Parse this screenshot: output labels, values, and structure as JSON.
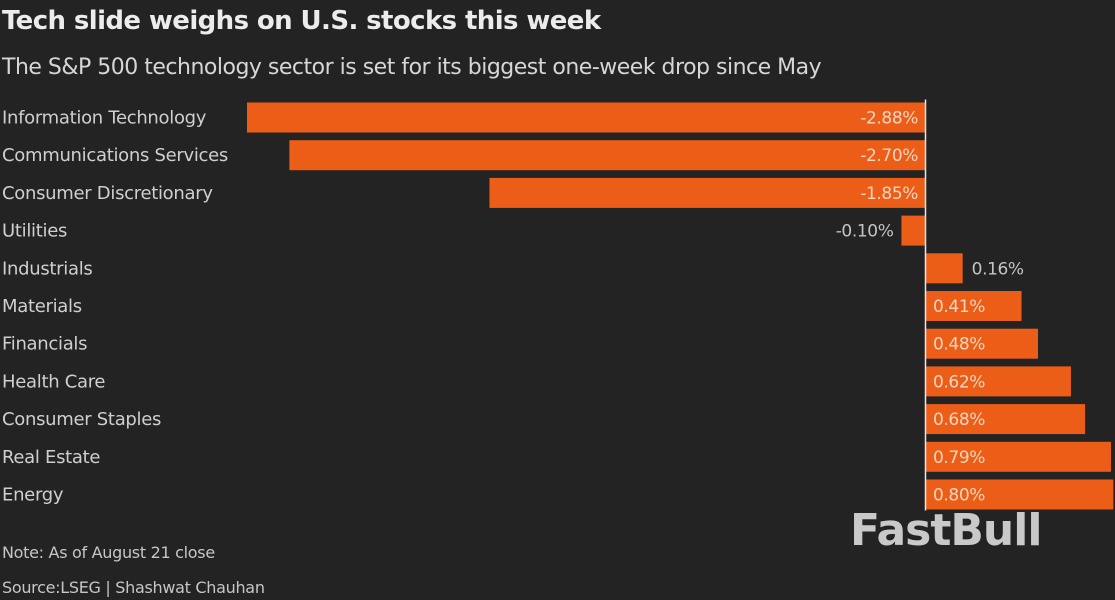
{
  "header": {
    "title": "Tech slide weighs on U.S. stocks this week",
    "subtitle": "The S&P 500 technology sector is set for its biggest one-week drop since May"
  },
  "footer": {
    "note": "Note: As of August 21 close",
    "source": "Source:LSEG | Shashwat Chauhan"
  },
  "watermark": "FastBull",
  "colors": {
    "background": "#232323",
    "bar": "#ec5e17",
    "axis": "#e8e8e8"
  },
  "chart_data": {
    "type": "bar",
    "orientation": "horizontal",
    "title": "Tech slide weighs on U.S. stocks this week",
    "subtitle": "The S&P 500 technology sector is set for its biggest one-week drop since May",
    "xlabel": "",
    "ylabel": "",
    "unit": "%",
    "grid": false,
    "legend": "none",
    "xlim": [
      -2.88,
      0.8
    ],
    "categories": [
      "Information Technology",
      "Communications Services",
      "Consumer Discretionary",
      "Utilities",
      "Industrials",
      "Materials",
      "Financials",
      "Health Care",
      "Consumer Staples",
      "Real Estate",
      "Energy"
    ],
    "values": [
      -2.88,
      -2.7,
      -1.85,
      -0.1,
      0.16,
      0.41,
      0.48,
      0.62,
      0.68,
      0.79,
      0.8
    ],
    "labels": [
      "-2.88%",
      "-2.70%",
      "-1.85%",
      "-0.10%",
      "0.16%",
      "0.41%",
      "0.48%",
      "0.62%",
      "0.68%",
      "0.79%",
      "0.80%"
    ]
  }
}
